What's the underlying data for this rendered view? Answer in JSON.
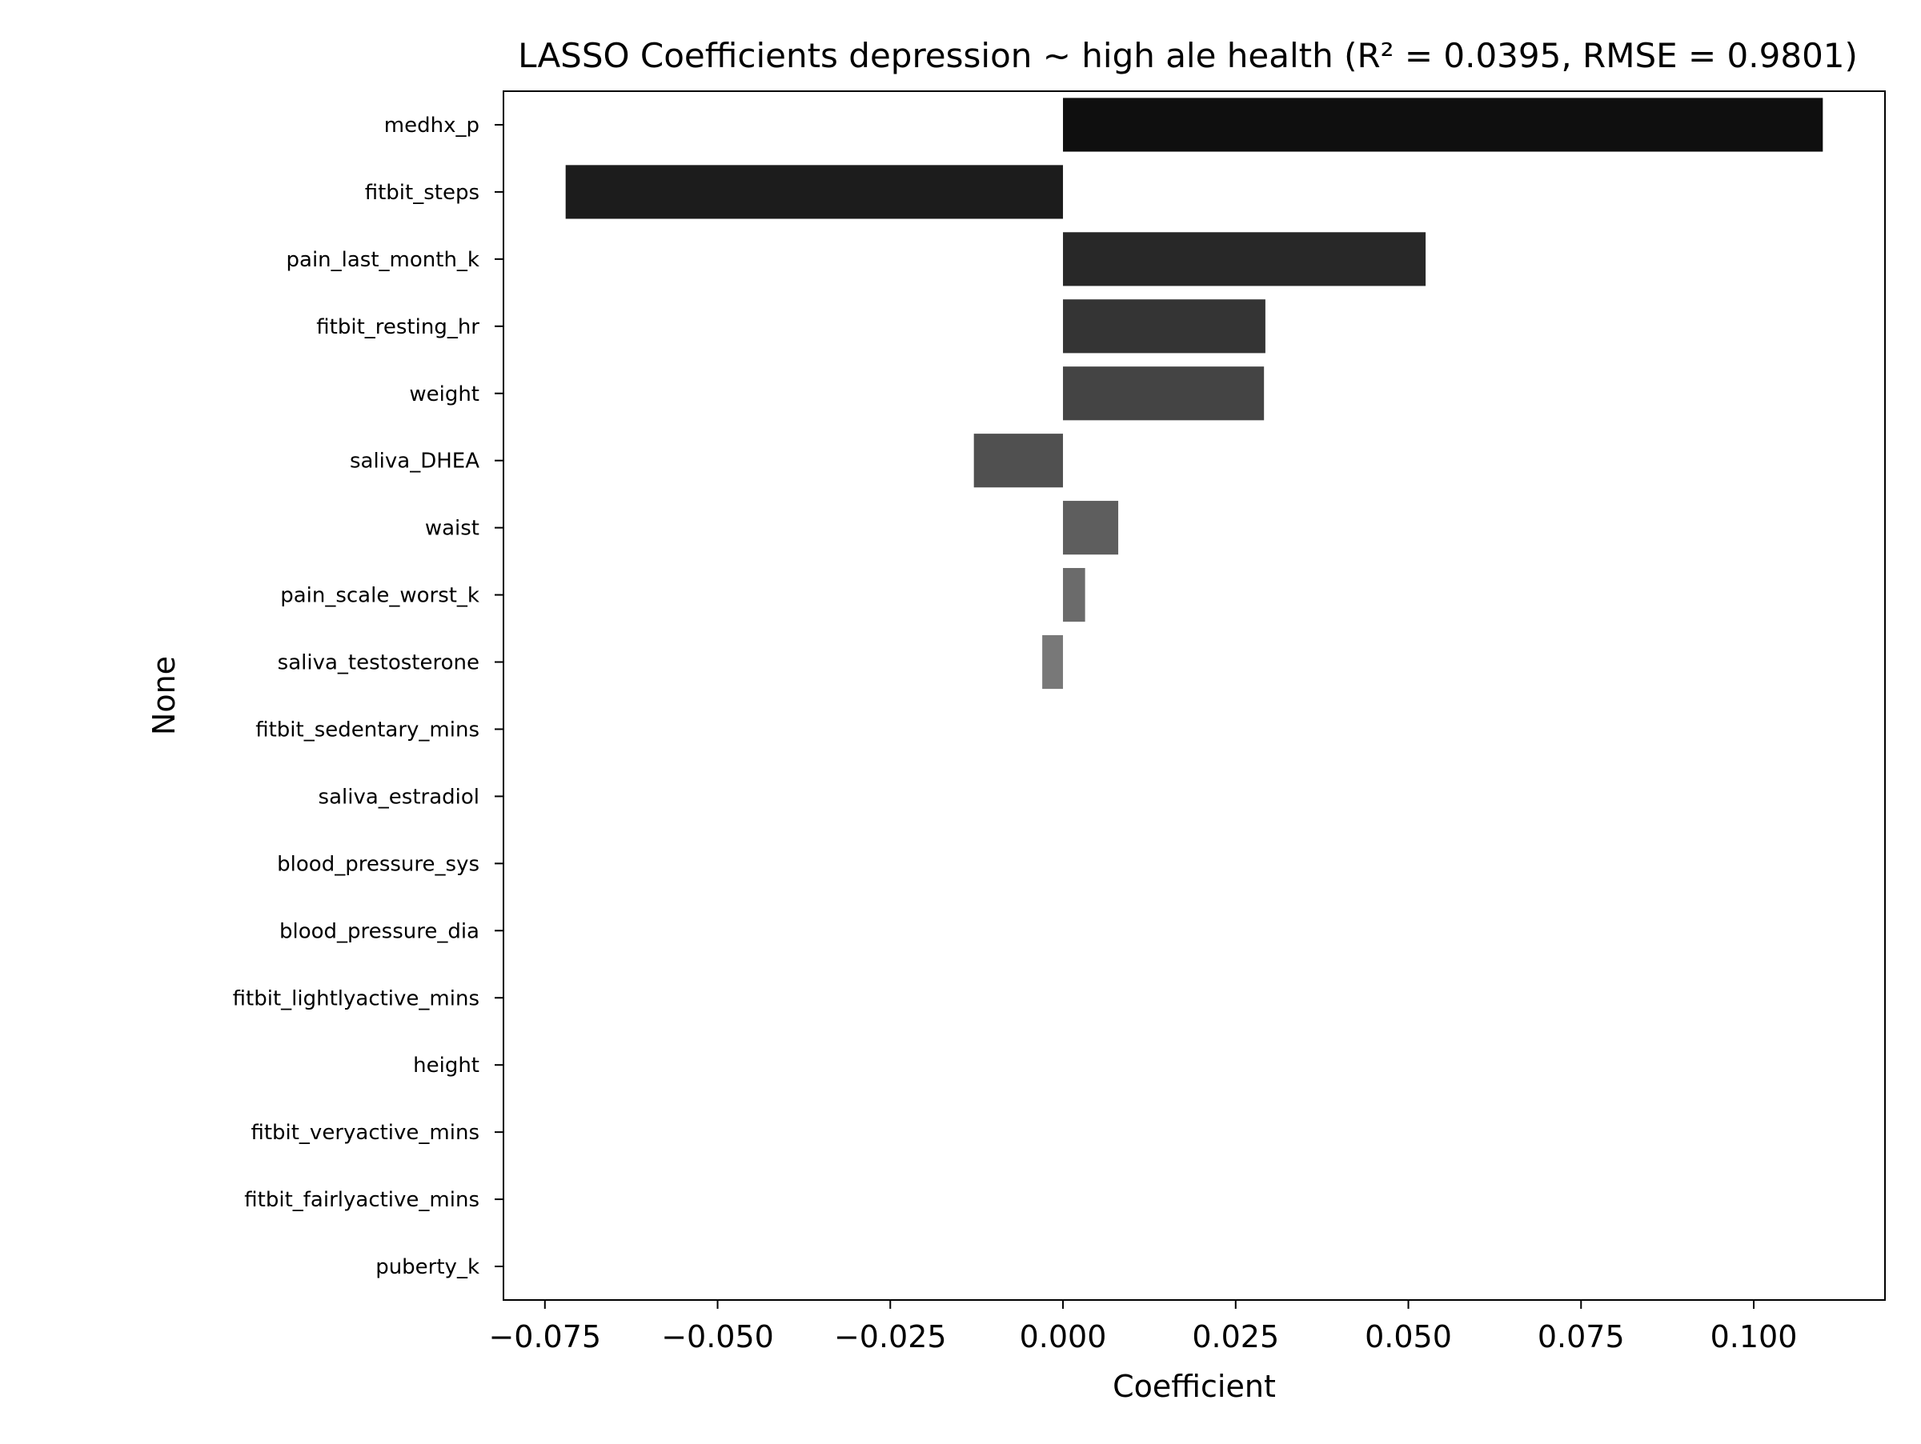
{
  "chart_data": {
    "type": "bar",
    "orientation": "horizontal",
    "title": "LASSO Coefficients depression ~ high ale health (R² = 0.0395, RMSE = 0.9801)",
    "xlabel": "Coefficient",
    "ylabel": "None",
    "xlim": [
      -0.081,
      0.119
    ],
    "x_ticks": [
      -0.075,
      -0.05,
      -0.025,
      0.0,
      0.025,
      0.05,
      0.075,
      0.1
    ],
    "x_tick_labels": [
      "−0.075",
      "−0.050",
      "−0.025",
      "0.000",
      "0.025",
      "0.050",
      "0.075",
      "0.100"
    ],
    "grid": false,
    "legend": "none",
    "categories": [
      "medhx_p",
      "fitbit_steps",
      "pain_last_month_k",
      "fitbit_resting_hr",
      "weight",
      "saliva_DHEA",
      "waist",
      "pain_scale_worst_k",
      "saliva_testosterone",
      "fitbit_sedentary_mins",
      "saliva_estradiol",
      "blood_pressure_sys",
      "blood_pressure_dia",
      "fitbit_lightlyactive_mins",
      "height",
      "fitbit_veryactive_mins",
      "fitbit_fairlyactive_mins",
      "puberty_k"
    ],
    "values": [
      0.11,
      -0.072,
      0.0525,
      0.0293,
      0.0291,
      -0.0129,
      0.008,
      0.0032,
      -0.003,
      0,
      0,
      0,
      0,
      0,
      0,
      0,
      0,
      0
    ],
    "colors": [
      "#0f0f0f",
      "#1c1c1c",
      "#282828",
      "#343434",
      "#444444",
      "#505050",
      "#5e5e5e",
      "#6b6b6b",
      "#787878",
      "#858585",
      "#929292",
      "#9e9e9e",
      "#aaaaaa",
      "#b6b6b6",
      "#c2c2c2",
      "#cccccc",
      "#d6d6d6",
      "#e0e0e0"
    ]
  }
}
